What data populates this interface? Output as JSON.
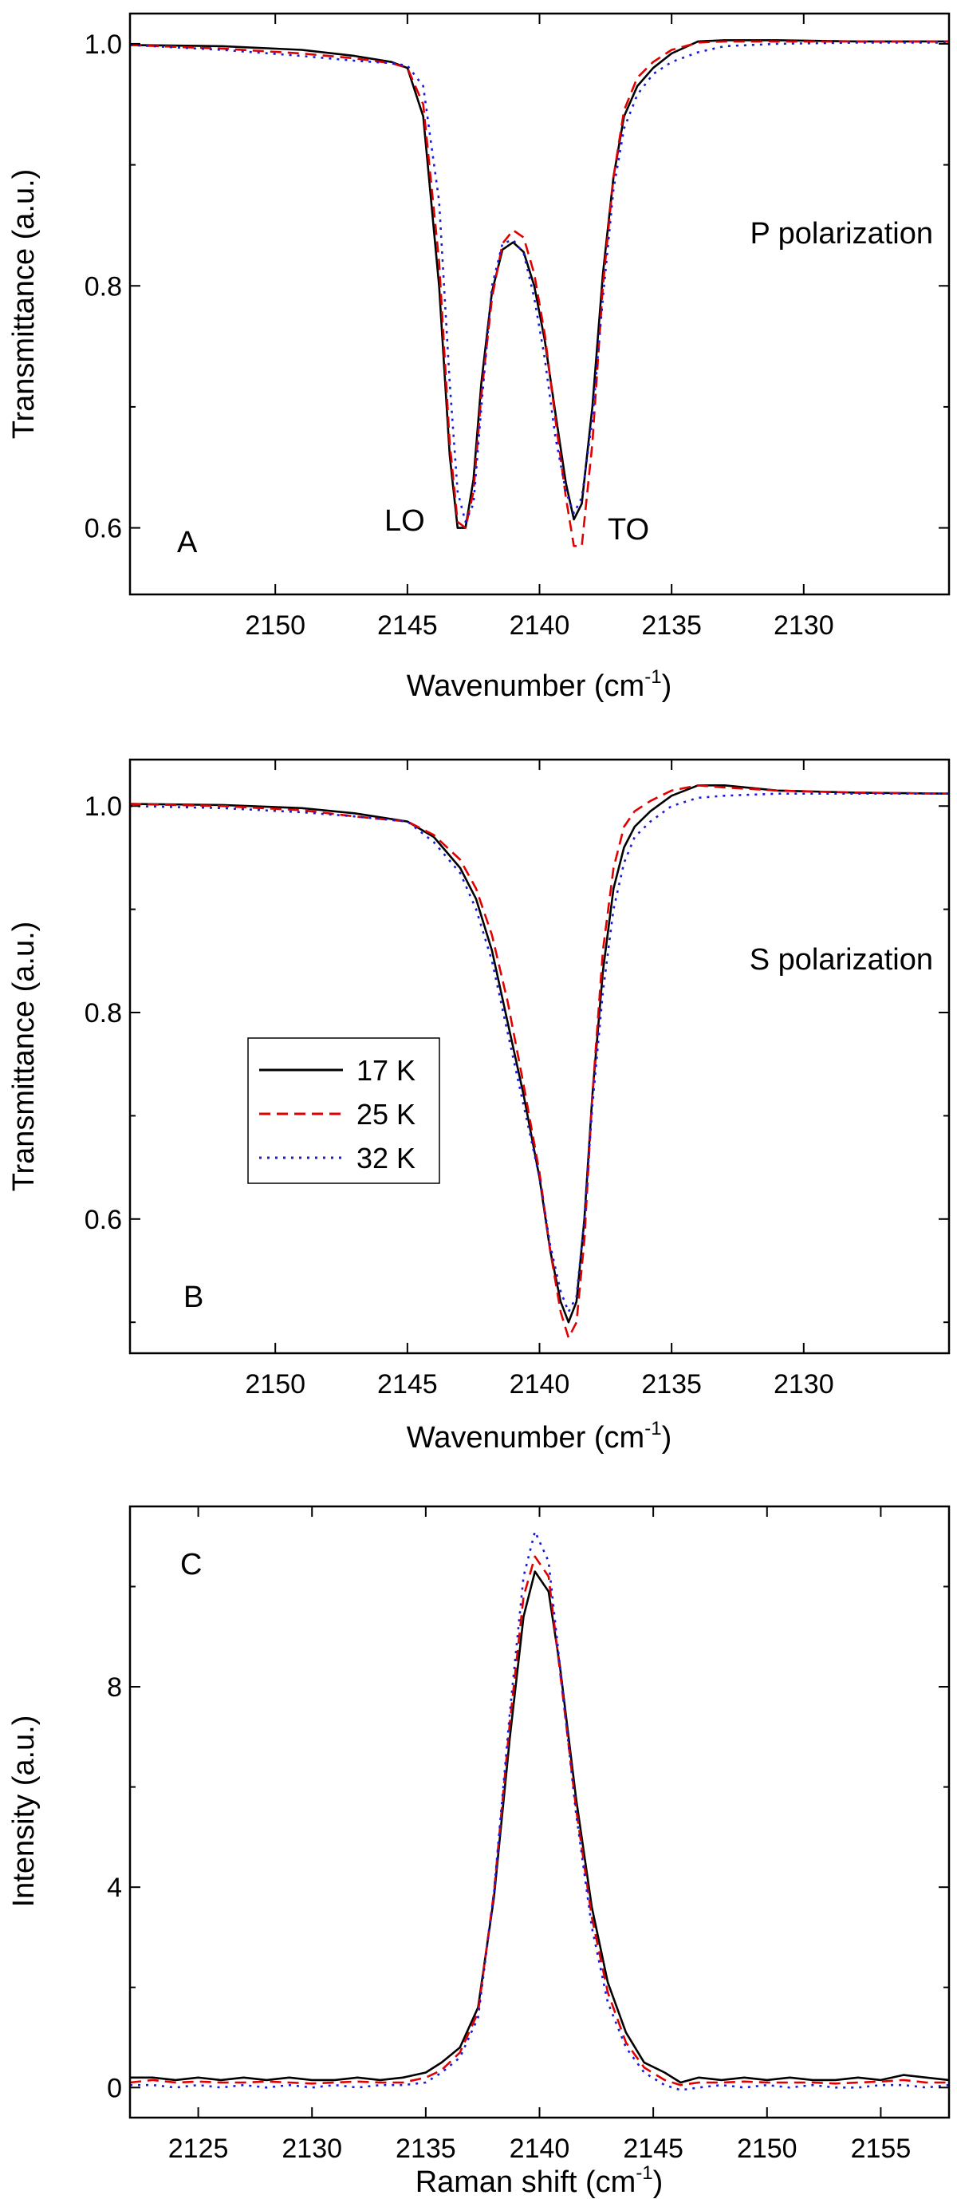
{
  "figure_title": "",
  "legend": {
    "entries": [
      {
        "label": "17 K",
        "color": "#000000",
        "dash": "solid"
      },
      {
        "label": "25 K",
        "color": "#e00000",
        "dash": "dashed"
      },
      {
        "label": "32 K",
        "color": "#1a1adc",
        "dash": "dotted"
      }
    ]
  },
  "chart_data": [
    {
      "panel": "A",
      "type": "line",
      "title": "",
      "xlabel": "Wavenumber (cm",
      "xlabel_sup": "-1",
      "xlabel_close": ")",
      "ylabel": "Transmittance (a.u.)",
      "xlim": [
        2155.5,
        2124.5
      ],
      "ylim": [
        0.545,
        1.025
      ],
      "xticks": [
        2150,
        2145,
        2140,
        2135,
        2130
      ],
      "xtick_labels": [
        "2150",
        "2145",
        "2140",
        "2135",
        "2130"
      ],
      "yticks": [
        0.6,
        0.8,
        1.0
      ],
      "ytick_labels": [
        "0.6",
        "0.8",
        "1.0"
      ],
      "yminor": [
        0.7,
        0.9
      ],
      "annotations": [
        {
          "text": "P polarization",
          "x": 2129.5,
          "y": 0.84
        },
        {
          "text": "LO",
          "x": 2144.6,
          "y": 0.603
        },
        {
          "text": "TO",
          "x": 2136.4,
          "y": 0.6
        }
      ],
      "series": [
        {
          "name": "17 K",
          "color": "#000000",
          "dash": "solid",
          "x": [
            2155.5,
            2152,
            2149,
            2147,
            2145.6,
            2145,
            2144.4,
            2143.8,
            2143.4,
            2143.1,
            2142.8,
            2142.5,
            2142.2,
            2141.8,
            2141.4,
            2141.0,
            2140.6,
            2140.2,
            2139.8,
            2139.4,
            2139.0,
            2138.7,
            2138.4,
            2138.0,
            2137.6,
            2137.2,
            2136.8,
            2136.3,
            2135.7,
            2135,
            2134,
            2133,
            2131,
            2128,
            2124.5
          ],
          "y": [
            0.999,
            0.998,
            0.995,
            0.99,
            0.985,
            0.98,
            0.94,
            0.8,
            0.66,
            0.6,
            0.6,
            0.64,
            0.72,
            0.795,
            0.83,
            0.836,
            0.828,
            0.8,
            0.755,
            0.695,
            0.637,
            0.607,
            0.62,
            0.7,
            0.81,
            0.89,
            0.94,
            0.965,
            0.98,
            0.992,
            1.002,
            1.003,
            1.003,
            1.002,
            1.002
          ]
        },
        {
          "name": "25 K",
          "color": "#e00000",
          "dash": "dashed",
          "x": [
            2155.5,
            2152,
            2149,
            2147,
            2145.6,
            2145,
            2144.4,
            2143.8,
            2143.4,
            2143.1,
            2142.8,
            2142.5,
            2142.2,
            2141.8,
            2141.4,
            2141.0,
            2140.6,
            2140.2,
            2139.8,
            2139.4,
            2139.0,
            2138.7,
            2138.4,
            2138.0,
            2137.6,
            2137.2,
            2136.8,
            2136.3,
            2135.7,
            2135,
            2134,
            2133,
            2131,
            2128,
            2124.5
          ],
          "y": [
            0.999,
            0.996,
            0.992,
            0.988,
            0.984,
            0.98,
            0.95,
            0.82,
            0.67,
            0.605,
            0.6,
            0.63,
            0.71,
            0.79,
            0.835,
            0.846,
            0.84,
            0.81,
            0.76,
            0.69,
            0.625,
            0.585,
            0.585,
            0.67,
            0.8,
            0.89,
            0.945,
            0.972,
            0.985,
            0.995,
            1.001,
            1.002,
            1.002,
            1.002,
            1.002
          ]
        },
        {
          "name": "32 K",
          "color": "#1a1adc",
          "dash": "dotted",
          "x": [
            2155.5,
            2152,
            2149,
            2147,
            2145.6,
            2145,
            2144.4,
            2143.8,
            2143.4,
            2143.1,
            2142.8,
            2142.5,
            2142.2,
            2141.8,
            2141.4,
            2141.0,
            2140.6,
            2140.2,
            2139.8,
            2139.4,
            2139.0,
            2138.7,
            2138.4,
            2138.0,
            2137.6,
            2137.2,
            2136.8,
            2136.3,
            2135.7,
            2135,
            2134,
            2133,
            2131,
            2128,
            2124.5
          ],
          "y": [
            0.999,
            0.995,
            0.99,
            0.986,
            0.984,
            0.982,
            0.965,
            0.87,
            0.72,
            0.63,
            0.605,
            0.62,
            0.7,
            0.8,
            0.835,
            0.838,
            0.827,
            0.79,
            0.74,
            0.675,
            0.63,
            0.612,
            0.625,
            0.69,
            0.79,
            0.88,
            0.93,
            0.958,
            0.975,
            0.985,
            0.993,
            0.998,
            1.0,
            1.001,
            1.001
          ]
        }
      ]
    },
    {
      "panel": "B",
      "type": "line",
      "title": "",
      "xlabel": "Wavenumber (cm",
      "xlabel_sup": "-1",
      "xlabel_close": ")",
      "ylabel": "Transmittance (a.u.)",
      "xlim": [
        2155.5,
        2124.5
      ],
      "ylim": [
        0.47,
        1.045
      ],
      "xticks": [
        2150,
        2145,
        2140,
        2135,
        2130
      ],
      "xtick_labels": [
        "2150",
        "2145",
        "2140",
        "2135",
        "2130"
      ],
      "yticks": [
        0.6,
        0.8,
        1.0
      ],
      "ytick_labels": [
        "0.6",
        "0.8",
        "1.0"
      ],
      "yminor": [
        0.5,
        0.7,
        0.9
      ],
      "annotations": [
        {
          "text": "S polarization",
          "x": 2129.4,
          "y": 0.83
        }
      ],
      "series": [
        {
          "name": "17 K",
          "color": "#000000",
          "dash": "solid",
          "x": [
            2155.5,
            2152,
            2149,
            2147,
            2145,
            2144,
            2143,
            2142.4,
            2141.8,
            2141.2,
            2140.6,
            2140.0,
            2139.6,
            2139.2,
            2138.9,
            2138.6,
            2138.3,
            2138.0,
            2137.6,
            2137.2,
            2136.8,
            2136.4,
            2135.8,
            2135,
            2134,
            2133,
            2131,
            2128,
            2124.5
          ],
          "y": [
            1.002,
            1.001,
            0.998,
            0.993,
            0.985,
            0.97,
            0.94,
            0.91,
            0.86,
            0.79,
            0.72,
            0.64,
            0.57,
            0.52,
            0.5,
            0.52,
            0.6,
            0.72,
            0.84,
            0.92,
            0.96,
            0.98,
            0.995,
            1.01,
            1.02,
            1.02,
            1.015,
            1.013,
            1.012
          ]
        },
        {
          "name": "25 K",
          "color": "#e00000",
          "dash": "dashed",
          "x": [
            2155.5,
            2152,
            2149,
            2147,
            2145,
            2144,
            2143,
            2142.4,
            2141.8,
            2141.2,
            2140.6,
            2140.0,
            2139.6,
            2139.2,
            2138.9,
            2138.6,
            2138.3,
            2138.0,
            2137.6,
            2137.2,
            2136.8,
            2136.4,
            2135.8,
            2135,
            2134,
            2133,
            2131,
            2128,
            2124.5
          ],
          "y": [
            1.002,
            1.0,
            0.996,
            0.99,
            0.985,
            0.972,
            0.948,
            0.92,
            0.875,
            0.81,
            0.73,
            0.645,
            0.57,
            0.51,
            0.485,
            0.5,
            0.58,
            0.72,
            0.86,
            0.94,
            0.98,
            0.995,
            1.005,
            1.015,
            1.02,
            1.018,
            1.015,
            1.013,
            1.012
          ]
        },
        {
          "name": "32 K",
          "color": "#1a1adc",
          "dash": "dotted",
          "x": [
            2155.5,
            2152,
            2149,
            2147,
            2145,
            2144,
            2143,
            2142.4,
            2141.8,
            2141.2,
            2140.6,
            2140.0,
            2139.6,
            2139.2,
            2138.9,
            2138.6,
            2138.3,
            2138.0,
            2137.6,
            2137.2,
            2136.8,
            2136.4,
            2135.8,
            2135,
            2134,
            2133,
            2131,
            2128,
            2124.5
          ],
          "y": [
            1.0,
            0.998,
            0.994,
            0.99,
            0.985,
            0.965,
            0.935,
            0.9,
            0.85,
            0.78,
            0.71,
            0.64,
            0.575,
            0.53,
            0.51,
            0.525,
            0.6,
            0.71,
            0.82,
            0.9,
            0.945,
            0.97,
            0.985,
            1.0,
            1.008,
            1.01,
            1.012,
            1.012,
            1.012
          ]
        }
      ]
    },
    {
      "panel": "C",
      "type": "line",
      "title": "",
      "xlabel": "Raman shift (cm",
      "xlabel_sup": "-1",
      "xlabel_close": ")",
      "ylabel": "Intensity (a.u.)",
      "xlim": [
        2122,
        2158
      ],
      "ylim": [
        -0.6,
        11.6
      ],
      "xticks": [
        2125,
        2130,
        2135,
        2140,
        2145,
        2150,
        2155
      ],
      "xtick_labels": [
        "2125",
        "2130",
        "2135",
        "2140",
        "2145",
        "2150",
        "2155"
      ],
      "yticks": [
        0,
        4,
        8
      ],
      "ytick_labels": [
        "0",
        "4",
        "8"
      ],
      "yminor": [
        2,
        6,
        10
      ],
      "annotations": [],
      "series": [
        {
          "name": "17 K",
          "color": "#000000",
          "dash": "solid",
          "x": [
            2122,
            2123,
            2124,
            2125,
            2126,
            2127,
            2128,
            2129,
            2130,
            2131,
            2132,
            2133,
            2134,
            2135,
            2135.7,
            2136.5,
            2137.3,
            2138,
            2138.7,
            2139.3,
            2139.8,
            2140.4,
            2140.9,
            2141.6,
            2142.3,
            2143,
            2143.8,
            2144.6,
            2145.5,
            2146.2,
            2147,
            2148,
            2149,
            2150,
            2151,
            2152,
            2153,
            2154,
            2155,
            2156,
            2157,
            2158
          ],
          "y": [
            0.2,
            0.2,
            0.15,
            0.2,
            0.15,
            0.2,
            0.15,
            0.2,
            0.15,
            0.15,
            0.2,
            0.15,
            0.2,
            0.3,
            0.5,
            0.8,
            1.6,
            3.8,
            7.0,
            9.4,
            10.3,
            9.9,
            8.4,
            5.8,
            3.6,
            2.1,
            1.1,
            0.5,
            0.3,
            0.1,
            0.2,
            0.15,
            0.2,
            0.15,
            0.2,
            0.15,
            0.15,
            0.2,
            0.15,
            0.25,
            0.2,
            0.15
          ]
        },
        {
          "name": "25 K",
          "color": "#e00000",
          "dash": "dashed",
          "x": [
            2122,
            2123,
            2124,
            2125,
            2126,
            2127,
            2128,
            2129,
            2130,
            2131,
            2132,
            2133,
            2134,
            2135,
            2135.7,
            2136.5,
            2137.3,
            2138,
            2138.7,
            2139.3,
            2139.8,
            2140.4,
            2140.9,
            2141.6,
            2142.3,
            2143,
            2143.8,
            2144.6,
            2145.5,
            2146.2,
            2147,
            2148,
            2149,
            2150,
            2151,
            2152,
            2153,
            2154,
            2155,
            2156,
            2157,
            2158
          ],
          "y": [
            0.1,
            0.15,
            0.1,
            0.12,
            0.1,
            0.1,
            0.12,
            0.1,
            0.08,
            0.1,
            0.12,
            0.1,
            0.1,
            0.2,
            0.35,
            0.7,
            1.5,
            3.9,
            7.3,
            9.8,
            10.6,
            10.2,
            8.3,
            5.6,
            3.4,
            1.9,
            0.9,
            0.4,
            0.15,
            0.05,
            0.1,
            0.1,
            0.12,
            0.1,
            0.1,
            0.1,
            0.08,
            0.1,
            0.12,
            0.15,
            0.1,
            0.1
          ]
        },
        {
          "name": "32 K",
          "color": "#1a1adc",
          "dash": "dotted",
          "x": [
            2122,
            2123,
            2124,
            2125,
            2126,
            2127,
            2128,
            2129,
            2130,
            2131,
            2132,
            2133,
            2134,
            2135,
            2135.7,
            2136.5,
            2137.3,
            2138,
            2138.7,
            2139.3,
            2139.8,
            2140.4,
            2140.9,
            2141.6,
            2142.3,
            2143,
            2143.8,
            2144.6,
            2145.5,
            2146.2,
            2147,
            2148,
            2149,
            2150,
            2151,
            2152,
            2153,
            2154,
            2155,
            2156,
            2157,
            2158
          ],
          "y": [
            0.05,
            0.05,
            0.0,
            0.05,
            0.0,
            0.05,
            0.0,
            0.05,
            0.0,
            0.05,
            0.0,
            0.05,
            0.05,
            0.1,
            0.3,
            0.6,
            1.4,
            3.9,
            7.5,
            10.2,
            11.1,
            10.5,
            8.4,
            5.5,
            3.2,
            1.7,
            0.8,
            0.3,
            0.05,
            -0.05,
            0.0,
            0.05,
            0.0,
            0.05,
            0.0,
            0.05,
            0.0,
            0.0,
            0.05,
            0.05,
            0.0,
            0.05
          ]
        }
      ]
    }
  ]
}
